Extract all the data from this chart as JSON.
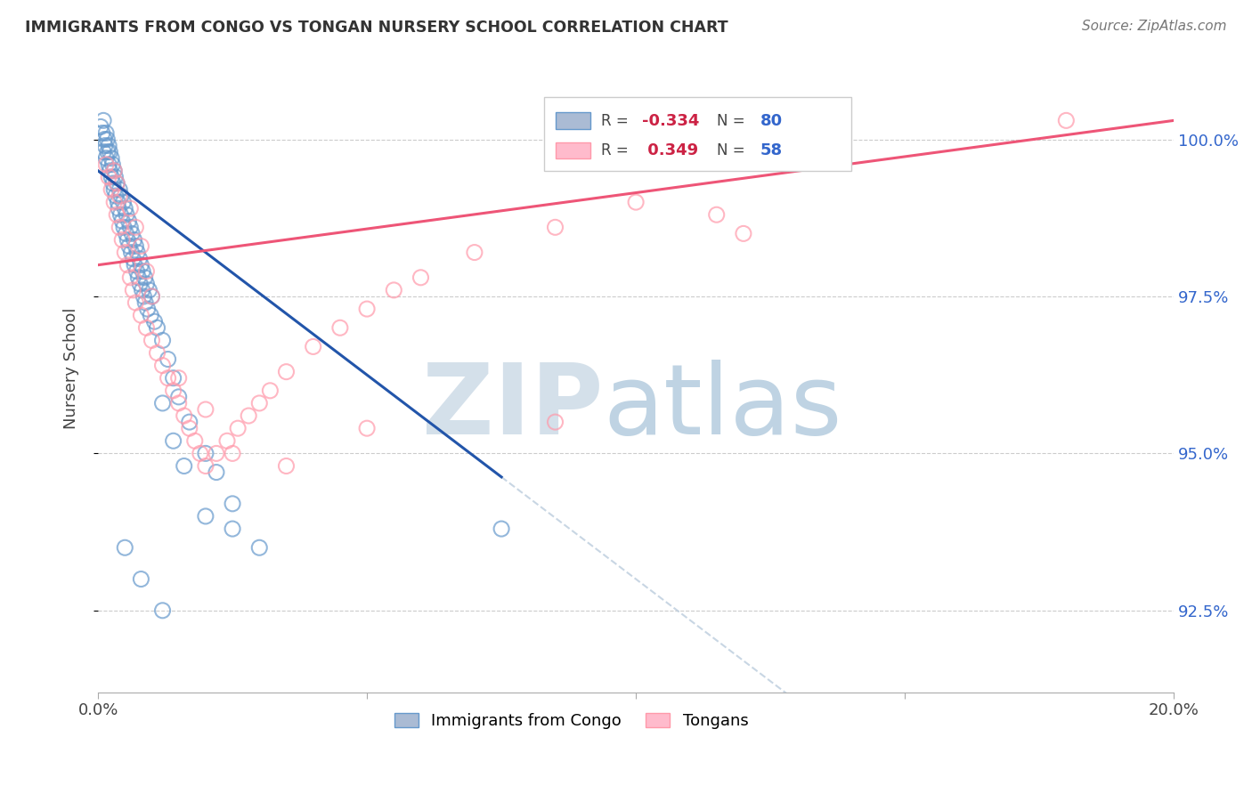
{
  "title": "IMMIGRANTS FROM CONGO VS TONGAN NURSERY SCHOOL CORRELATION CHART",
  "source": "Source: ZipAtlas.com",
  "ylabel": "Nursery School",
  "ytick_values": [
    92.5,
    95.0,
    97.5,
    100.0
  ],
  "ytick_labels": [
    "92.5%",
    "95.0%",
    "97.5%",
    "100.0%"
  ],
  "xlim": [
    0.0,
    20.0
  ],
  "ylim": [
    91.2,
    101.5
  ],
  "legend_r_congo": "-0.334",
  "legend_n_congo": "80",
  "legend_r_tongan": "0.349",
  "legend_n_tongan": "58",
  "congo_color": "#6699cc",
  "tongan_color": "#ff99aa",
  "congo_line_color": "#2255aa",
  "tongan_line_color": "#ee5577",
  "dashed_line_color": "#bbccdd",
  "watermark_zip_color": "#d0dde8",
  "watermark_atlas_color": "#b8cfe0",
  "background_color": "#ffffff"
}
